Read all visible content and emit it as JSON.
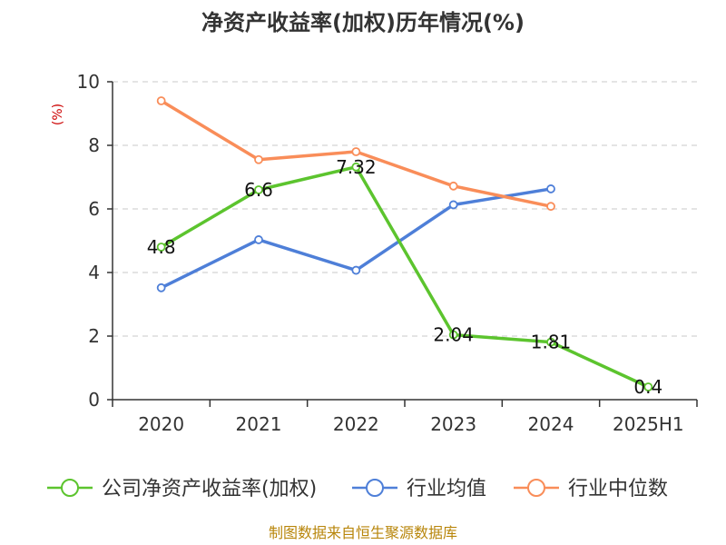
{
  "chart_data": {
    "type": "line",
    "title": "净资产收益率(加权)历年情况(%)",
    "ylabel": "(%)",
    "xlabel": "",
    "categories": [
      "2020",
      "2021",
      "2022",
      "2023",
      "2024",
      "2025H1"
    ],
    "ylim": [
      0,
      10
    ],
    "yticks": [
      0,
      2,
      4,
      6,
      8,
      10
    ],
    "grid": true,
    "legend_position": "bottom",
    "series": [
      {
        "name": "公司净资产收益率(加权)",
        "color": "#5cc42e",
        "values": [
          4.8,
          6.6,
          7.32,
          2.04,
          1.81,
          0.4
        ],
        "labels": [
          "4.8",
          "6.6",
          "7.32",
          "2.04",
          "1.81",
          "0.4"
        ]
      },
      {
        "name": "行业均值",
        "color": "#4e7fd8",
        "values": [
          3.52,
          5.03,
          4.07,
          6.13,
          6.63,
          null
        ]
      },
      {
        "name": "行业中位数",
        "color": "#f98d59",
        "values": [
          9.4,
          7.55,
          7.8,
          6.72,
          6.08,
          null
        ]
      }
    ],
    "source": "制图数据来自恒生聚源数据库"
  }
}
